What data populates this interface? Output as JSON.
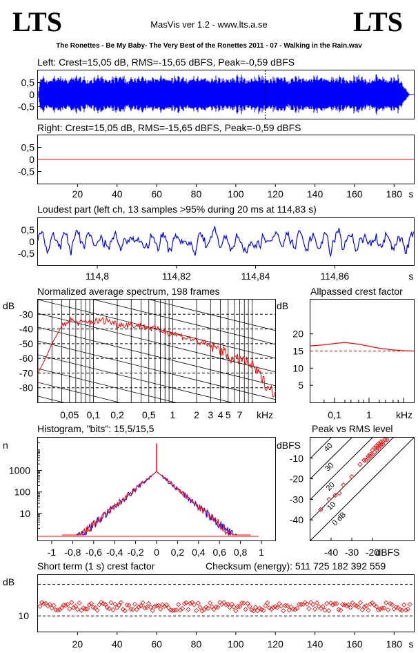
{
  "header": {
    "logo_left": "LTS",
    "logo_right": "LTS",
    "app": "MasVis ver 1.2 - www.lts.a.se",
    "track": "The Ronettes - Be My Baby- The Very Best of the Ronettes 2011 - 07 - Walking in the Rain.wav"
  },
  "colors": {
    "left": "#0000ff",
    "right": "#ff0000",
    "axis": "#000000"
  },
  "chart_data": [
    {
      "type": "area",
      "title": "Left: Crest=15,05 dB, RMS=-15,65 dBFS, Peak=-0,59 dBFS",
      "channel": "left",
      "yticks": [
        "0,5",
        "0",
        "-0,5"
      ],
      "ylim": [
        -1,
        1
      ],
      "duration_s": 190,
      "envelope_peak": 0.9,
      "fade_out_start_s": 182,
      "fade_out_end_s": 188,
      "marker_s": 114.83
    },
    {
      "type": "area",
      "title": "Right: Crest=15,05 dB, RMS=-15,65 dBFS, Peak=-0,59 dBFS",
      "channel": "right",
      "yticks": [
        "0,5",
        "0",
        "-0,5"
      ],
      "ylim": [
        -1,
        1
      ],
      "duration_s": 190,
      "xticks": [
        "20",
        "40",
        "60",
        "80",
        "100",
        "120",
        "140",
        "160",
        "180",
        "s"
      ]
    },
    {
      "type": "line",
      "title": "Loudest part (left  ch, 13 samples >95% during 20 ms at 114,83 s)",
      "yticks": [
        "0,5",
        "0",
        "-0,5"
      ],
      "xticks": [
        "114,8",
        "114,82",
        "114,84",
        "114,86",
        "s"
      ],
      "xlim": [
        114.785,
        114.88
      ]
    },
    {
      "type": "line",
      "title": "Normalized average spectrum, 198 frames",
      "ylabel": "dB",
      "yticks": [
        "-30",
        "-40",
        "-50",
        "-60",
        "-70",
        "-80"
      ],
      "xticks": [
        "0,05",
        "0,1",
        "0,2",
        "0,5",
        "1",
        "2",
        "3",
        "4",
        "5",
        "7",
        "kHz"
      ],
      "series": [
        {
          "x": [
            0.02,
            0.025,
            0.03,
            0.04,
            0.05,
            0.07,
            0.1,
            0.15,
            0.2,
            0.3,
            0.5,
            0.7,
            1,
            1.5,
            2,
            3,
            4,
            5,
            6,
            7,
            8,
            10,
            12,
            15,
            20
          ],
          "y": [
            -70,
            -60,
            -50,
            -38,
            -34,
            -36,
            -35,
            -34,
            -37,
            -37,
            -39,
            -41,
            -43,
            -46,
            -48,
            -52,
            -54,
            -58,
            -62,
            -60,
            -62,
            -65,
            -70,
            -78,
            -84
          ]
        }
      ]
    },
    {
      "type": "line",
      "title": "Allpassed crest factor",
      "ylabel": "dB",
      "yticks": [
        "20",
        "15",
        "10",
        "5"
      ],
      "xticks": [
        "0,1",
        "1",
        "kHz"
      ],
      "reference_db": 15,
      "series": [
        {
          "x": [
            0.02,
            0.05,
            0.1,
            0.2,
            0.5,
            1,
            2,
            5,
            10,
            20
          ],
          "y": [
            16.5,
            16.8,
            17.2,
            17.5,
            17.0,
            16.4,
            15.8,
            15.3,
            15.1,
            15.0
          ]
        }
      ]
    },
    {
      "type": "line",
      "title": "Histogram, \"bits\": 15,5/15,5",
      "ylabel": "n",
      "yticks": [
        "1000",
        "100",
        "10"
      ],
      "xticks": [
        "-1",
        "-0,8",
        "-0,6",
        "-0,4",
        "-0,2",
        "0",
        "0,2",
        "0,4",
        "0,6",
        "0,8",
        "1"
      ],
      "peak_count": 900,
      "spike_count": 18000,
      "edge": 0.9
    },
    {
      "type": "scatter",
      "title": "Peak vs RMS level",
      "ylabel": "dBFS",
      "xlabel": "dBFS",
      "yticks": [
        "-10",
        "-20",
        "-30",
        "-40"
      ],
      "xticks": [
        "-40",
        "-30",
        "-20"
      ],
      "diag_labels": [
        "40",
        "30",
        "20",
        "10",
        "0 dB"
      ],
      "series": [
        {
          "x": [
            -45,
            -41,
            -38,
            -36,
            -34,
            -30,
            -26,
            -24,
            -22,
            -21,
            -20,
            -19,
            -18,
            -17,
            -16,
            -15,
            -14,
            -13,
            -20,
            -19,
            -18,
            -17,
            -16,
            -15,
            -18,
            -17,
            -16,
            -21,
            -22,
            -23,
            -24
          ],
          "y": [
            -35,
            -30,
            -28,
            -27,
            -23,
            -19,
            -13,
            -11,
            -9,
            -8,
            -6,
            -5,
            -4,
            -3,
            -2,
            -2,
            -1,
            -1,
            -8,
            -7,
            -6,
            -4,
            -3,
            -3,
            -5,
            -5,
            -4,
            -9,
            -10,
            -11,
            -11
          ]
        }
      ]
    },
    {
      "type": "scatter",
      "title": "Short term (1 s) crest factor",
      "checksum": "Checksum (energy):   511 725 182 392 559",
      "ylabel": "dB",
      "yticks": [
        "10"
      ],
      "xticks": [
        "20",
        "40",
        "60",
        "80",
        "100",
        "120",
        "140",
        "160",
        "180",
        "s"
      ],
      "mean_db": 13,
      "spread_db": 2,
      "upper_ref_db": 20
    }
  ]
}
